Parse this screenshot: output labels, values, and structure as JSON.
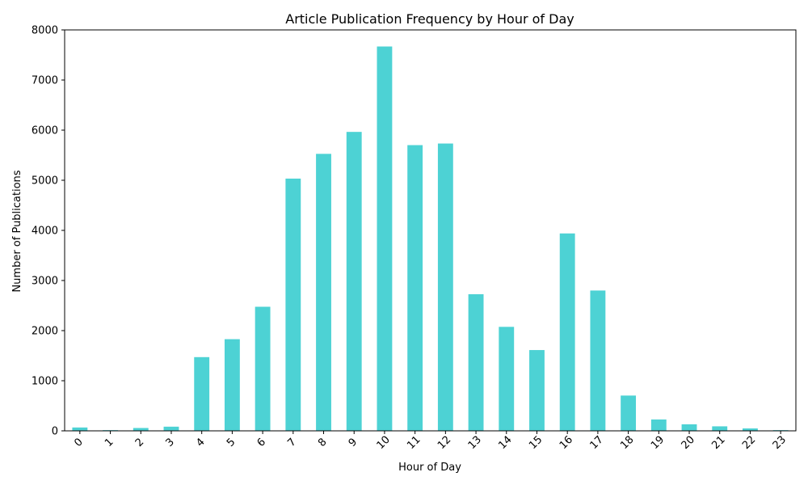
{
  "chart_data": {
    "type": "bar",
    "title": "Article Publication Frequency by Hour of Day",
    "xlabel": "Hour of Day",
    "ylabel": "Number of Publications",
    "categories": [
      "0",
      "1",
      "2",
      "3",
      "4",
      "5",
      "6",
      "7",
      "8",
      "9",
      "10",
      "11",
      "12",
      "13",
      "14",
      "15",
      "16",
      "17",
      "18",
      "19",
      "20",
      "21",
      "22",
      "23"
    ],
    "values": [
      67,
      14,
      57,
      83,
      1471,
      1829,
      2476,
      5033,
      5527,
      5965,
      7669,
      5701,
      5733,
      2726,
      2075,
      1612,
      3939,
      2800,
      704,
      227,
      131,
      90,
      48,
      14
    ],
    "ylim": [
      0,
      8000
    ],
    "yticks": [
      0,
      1000,
      2000,
      3000,
      4000,
      5000,
      6000,
      7000,
      8000
    ],
    "bar_color": "#4dd2d4",
    "grid": false,
    "legend": "none"
  }
}
